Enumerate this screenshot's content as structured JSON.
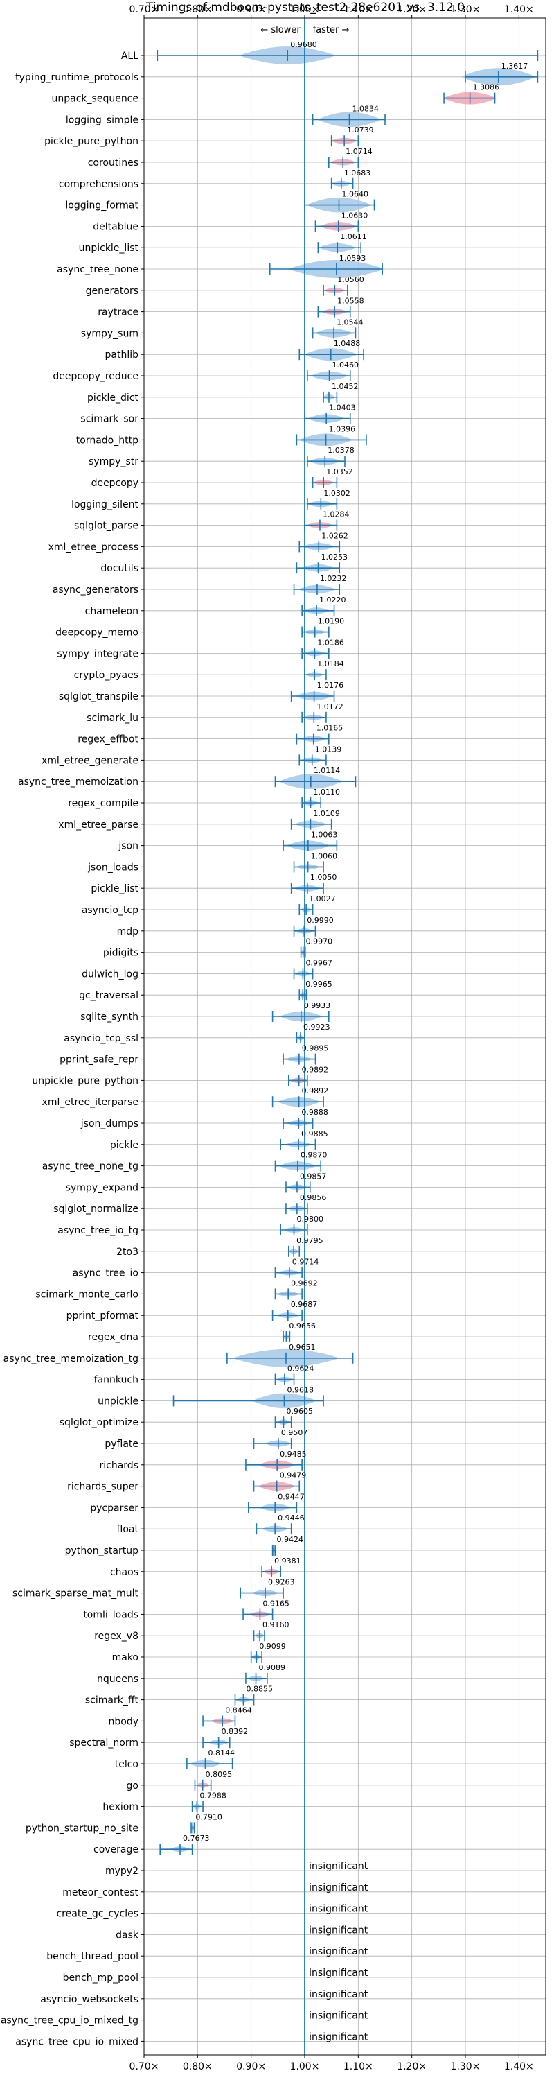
{
  "chart_data": {
    "type": "violin",
    "title": "Timings of mdboom-pystats_test2-28e6201 vs. 3.12.0",
    "annotation_slower": "← slower",
    "annotation_faster": "faster →",
    "xlim": [
      0.7,
      1.45
    ],
    "x_ticks": [
      0.7,
      0.8,
      0.9,
      1.0,
      1.1,
      1.2,
      1.3,
      1.4
    ],
    "x_tick_labels": [
      "0.70×",
      "0.80×",
      "0.90×",
      "1.00×",
      "1.10×",
      "1.20×",
      "1.30×",
      "1.40×"
    ],
    "reference_line": 1.0,
    "grid": true,
    "colors": {
      "faster": "#a6c8e8",
      "slower": "#f4a6b0",
      "line": "#1f77b4"
    },
    "insignificant_label": "insignificant",
    "benchmarks": [
      {
        "name": "ALL",
        "value": 0.968,
        "label": "0.9680",
        "lo": 0.725,
        "hi": 1.435,
        "spread": 0.09,
        "color": "faster"
      },
      {
        "name": "typing_runtime_protocols",
        "value": 1.3617,
        "label": "1.3617",
        "lo": 1.3,
        "hi": 1.435,
        "spread": 0.07,
        "color": "faster"
      },
      {
        "name": "unpack_sequence",
        "value": 1.3086,
        "label": "1.3086",
        "lo": 1.26,
        "hi": 1.355,
        "spread": 0.05,
        "color": "slower"
      },
      {
        "name": "logging_simple",
        "value": 1.0834,
        "label": "1.0834",
        "lo": 1.015,
        "hi": 1.15,
        "spread": 0.06,
        "color": "faster"
      },
      {
        "name": "pickle_pure_python",
        "value": 1.0739,
        "label": "1.0739",
        "lo": 1.05,
        "hi": 1.1,
        "spread": 0.025,
        "color": "slower"
      },
      {
        "name": "coroutines",
        "value": 1.0714,
        "label": "1.0714",
        "lo": 1.045,
        "hi": 1.1,
        "spread": 0.025,
        "color": "slower"
      },
      {
        "name": "comprehensions",
        "value": 1.0683,
        "label": "1.0683",
        "lo": 1.05,
        "hi": 1.09,
        "spread": 0.02,
        "color": "faster"
      },
      {
        "name": "logging_format",
        "value": 1.064,
        "label": "1.0640",
        "lo": 1.0,
        "hi": 1.13,
        "spread": 0.06,
        "color": "faster"
      },
      {
        "name": "deltablue",
        "value": 1.063,
        "label": "1.0630",
        "lo": 1.02,
        "hi": 1.1,
        "spread": 0.035,
        "color": "slower"
      },
      {
        "name": "unpickle_list",
        "value": 1.0611,
        "label": "1.0611",
        "lo": 1.025,
        "hi": 1.105,
        "spread": 0.035,
        "color": "faster"
      },
      {
        "name": "async_tree_none",
        "value": 1.0593,
        "label": "1.0593",
        "lo": 0.935,
        "hi": 1.145,
        "spread": 0.09,
        "color": "faster"
      },
      {
        "name": "generators",
        "value": 1.056,
        "label": "1.0560",
        "lo": 1.035,
        "hi": 1.08,
        "spread": 0.02,
        "color": "slower"
      },
      {
        "name": "raytrace",
        "value": 1.0558,
        "label": "1.0558",
        "lo": 1.025,
        "hi": 1.085,
        "spread": 0.025,
        "color": "slower"
      },
      {
        "name": "sympy_sum",
        "value": 1.0544,
        "label": "1.0544",
        "lo": 1.015,
        "hi": 1.095,
        "spread": 0.035,
        "color": "faster"
      },
      {
        "name": "pathlib",
        "value": 1.0488,
        "label": "1.0488",
        "lo": 0.99,
        "hi": 1.11,
        "spread": 0.05,
        "color": "faster"
      },
      {
        "name": "deepcopy_reduce",
        "value": 1.046,
        "label": "1.0460",
        "lo": 1.005,
        "hi": 1.085,
        "spread": 0.035,
        "color": "faster"
      },
      {
        "name": "pickle_dict",
        "value": 1.0452,
        "label": "1.0452",
        "lo": 1.035,
        "hi": 1.06,
        "spread": 0.012,
        "color": "faster"
      },
      {
        "name": "scimark_sor",
        "value": 1.0403,
        "label": "1.0403",
        "lo": 1.0,
        "hi": 1.085,
        "spread": 0.035,
        "color": "faster"
      },
      {
        "name": "tornado_http",
        "value": 1.0396,
        "label": "1.0396",
        "lo": 0.985,
        "hi": 1.115,
        "spread": 0.05,
        "color": "faster"
      },
      {
        "name": "sympy_str",
        "value": 1.0378,
        "label": "1.0378",
        "lo": 1.005,
        "hi": 1.075,
        "spread": 0.03,
        "color": "faster"
      },
      {
        "name": "deepcopy",
        "value": 1.0352,
        "label": "1.0352",
        "lo": 1.015,
        "hi": 1.06,
        "spread": 0.02,
        "color": "slower"
      },
      {
        "name": "logging_silent",
        "value": 1.0302,
        "label": "1.0302",
        "lo": 1.005,
        "hi": 1.06,
        "spread": 0.025,
        "color": "faster"
      },
      {
        "name": "sqlglot_parse",
        "value": 1.0284,
        "label": "1.0284",
        "lo": 1.0,
        "hi": 1.06,
        "spread": 0.025,
        "color": "slower"
      },
      {
        "name": "xml_etree_process",
        "value": 1.0262,
        "label": "1.0262",
        "lo": 0.99,
        "hi": 1.065,
        "spread": 0.03,
        "color": "faster"
      },
      {
        "name": "docutils",
        "value": 1.0253,
        "label": "1.0253",
        "lo": 0.985,
        "hi": 1.065,
        "spread": 0.03,
        "color": "faster"
      },
      {
        "name": "async_generators",
        "value": 1.0232,
        "label": "1.0232",
        "lo": 0.98,
        "hi": 1.065,
        "spread": 0.035,
        "color": "faster"
      },
      {
        "name": "chameleon",
        "value": 1.022,
        "label": "1.0220",
        "lo": 0.995,
        "hi": 1.055,
        "spread": 0.025,
        "color": "faster"
      },
      {
        "name": "deepcopy_memo",
        "value": 1.019,
        "label": "1.0190",
        "lo": 0.995,
        "hi": 1.045,
        "spread": 0.02,
        "color": "faster"
      },
      {
        "name": "sympy_integrate",
        "value": 1.0186,
        "label": "1.0186",
        "lo": 0.995,
        "hi": 1.045,
        "spread": 0.02,
        "color": "faster"
      },
      {
        "name": "crypto_pyaes",
        "value": 1.0184,
        "label": "1.0184",
        "lo": 1.0,
        "hi": 1.04,
        "spread": 0.017,
        "color": "faster"
      },
      {
        "name": "sqlglot_transpile",
        "value": 1.0176,
        "label": "1.0176",
        "lo": 0.975,
        "hi": 1.055,
        "spread": 0.035,
        "color": "faster"
      },
      {
        "name": "scimark_lu",
        "value": 1.0172,
        "label": "1.0172",
        "lo": 0.995,
        "hi": 1.04,
        "spread": 0.02,
        "color": "faster"
      },
      {
        "name": "regex_effbot",
        "value": 1.0165,
        "label": "1.0165",
        "lo": 0.985,
        "hi": 1.045,
        "spread": 0.025,
        "color": "faster"
      },
      {
        "name": "xml_etree_generate",
        "value": 1.0139,
        "label": "1.0139",
        "lo": 0.99,
        "hi": 1.04,
        "spread": 0.02,
        "color": "faster"
      },
      {
        "name": "async_tree_memoization",
        "value": 1.0114,
        "label": "1.0114",
        "lo": 0.945,
        "hi": 1.095,
        "spread": 0.06,
        "color": "faster"
      },
      {
        "name": "regex_compile",
        "value": 1.011,
        "label": "1.0110",
        "lo": 0.995,
        "hi": 1.03,
        "spread": 0.015,
        "color": "faster"
      },
      {
        "name": "xml_etree_parse",
        "value": 1.0109,
        "label": "1.0109",
        "lo": 0.975,
        "hi": 1.05,
        "spread": 0.03,
        "color": "faster"
      },
      {
        "name": "json",
        "value": 1.0063,
        "label": "1.0063",
        "lo": 0.96,
        "hi": 1.06,
        "spread": 0.04,
        "color": "faster"
      },
      {
        "name": "json_loads",
        "value": 1.006,
        "label": "1.0060",
        "lo": 0.98,
        "hi": 1.035,
        "spread": 0.022,
        "color": "faster"
      },
      {
        "name": "pickle_list",
        "value": 1.005,
        "label": "1.0050",
        "lo": 0.975,
        "hi": 1.035,
        "spread": 0.025,
        "color": "faster"
      },
      {
        "name": "asyncio_tcp",
        "value": 1.0027,
        "label": "1.0027",
        "lo": 0.99,
        "hi": 1.015,
        "spread": 0.01,
        "color": "faster"
      },
      {
        "name": "mdp",
        "value": 0.999,
        "label": "0.9990",
        "lo": 0.98,
        "hi": 1.02,
        "spread": 0.016,
        "color": "faster"
      },
      {
        "name": "pidigits",
        "value": 0.997,
        "label": "0.9970",
        "lo": 0.993,
        "hi": 1.001,
        "spread": 0.004,
        "color": "faster"
      },
      {
        "name": "dulwich_log",
        "value": 0.9967,
        "label": "0.9967",
        "lo": 0.98,
        "hi": 1.015,
        "spread": 0.015,
        "color": "faster"
      },
      {
        "name": "gc_traversal",
        "value": 0.9965,
        "label": "0.9965",
        "lo": 0.99,
        "hi": 1.003,
        "spread": 0.006,
        "color": "faster"
      },
      {
        "name": "sqlite_synth",
        "value": 0.9933,
        "label": "0.9933",
        "lo": 0.94,
        "hi": 1.045,
        "spread": 0.04,
        "color": "faster"
      },
      {
        "name": "asyncio_tcp_ssl",
        "value": 0.9923,
        "label": "0.9923",
        "lo": 0.985,
        "hi": 1.0,
        "spread": 0.006,
        "color": "faster"
      },
      {
        "name": "pprint_safe_repr",
        "value": 0.9895,
        "label": "0.9895",
        "lo": 0.96,
        "hi": 1.02,
        "spread": 0.025,
        "color": "faster"
      },
      {
        "name": "unpickle_pure_python",
        "value": 0.9892,
        "label": "0.9892",
        "lo": 0.97,
        "hi": 1.005,
        "spread": 0.016,
        "color": "slower"
      },
      {
        "name": "xml_etree_iterparse",
        "value": 0.9892,
        "label": "0.9892",
        "lo": 0.94,
        "hi": 1.035,
        "spread": 0.04,
        "color": "faster"
      },
      {
        "name": "json_dumps",
        "value": 0.9888,
        "label": "0.9888",
        "lo": 0.96,
        "hi": 1.015,
        "spread": 0.022,
        "color": "faster"
      },
      {
        "name": "pickle",
        "value": 0.9885,
        "label": "0.9885",
        "lo": 0.955,
        "hi": 1.02,
        "spread": 0.025,
        "color": "faster"
      },
      {
        "name": "async_tree_none_tg",
        "value": 0.987,
        "label": "0.9870",
        "lo": 0.945,
        "hi": 1.03,
        "spread": 0.035,
        "color": "faster"
      },
      {
        "name": "sympy_expand",
        "value": 0.9857,
        "label": "0.9857",
        "lo": 0.965,
        "hi": 1.01,
        "spread": 0.02,
        "color": "faster"
      },
      {
        "name": "sqlglot_normalize",
        "value": 0.9856,
        "label": "0.9856",
        "lo": 0.965,
        "hi": 1.005,
        "spread": 0.018,
        "color": "faster"
      },
      {
        "name": "async_tree_io_tg",
        "value": 0.98,
        "label": "0.9800",
        "lo": 0.955,
        "hi": 1.005,
        "spread": 0.02,
        "color": "faster"
      },
      {
        "name": "2to3",
        "value": 0.9795,
        "label": "0.9795",
        "lo": 0.97,
        "hi": 0.99,
        "spread": 0.009,
        "color": "faster"
      },
      {
        "name": "async_tree_io",
        "value": 0.9714,
        "label": "0.9714",
        "lo": 0.945,
        "hi": 0.995,
        "spread": 0.022,
        "color": "faster"
      },
      {
        "name": "scimark_monte_carlo",
        "value": 0.9692,
        "label": "0.9692",
        "lo": 0.945,
        "hi": 0.995,
        "spread": 0.02,
        "color": "faster"
      },
      {
        "name": "pprint_pformat",
        "value": 0.9687,
        "label": "0.9687",
        "lo": 0.94,
        "hi": 0.995,
        "spread": 0.022,
        "color": "faster"
      },
      {
        "name": "regex_dna",
        "value": 0.9656,
        "label": "0.9656",
        "lo": 0.96,
        "hi": 0.972,
        "spread": 0.006,
        "color": "faster"
      },
      {
        "name": "async_tree_memoization_tg",
        "value": 0.9651,
        "label": "0.9651",
        "lo": 0.855,
        "hi": 1.09,
        "spread": 0.1,
        "color": "faster"
      },
      {
        "name": "fannkuch",
        "value": 0.9624,
        "label": "0.9624",
        "lo": 0.945,
        "hi": 0.98,
        "spread": 0.016,
        "color": "faster"
      },
      {
        "name": "unpickle",
        "value": 0.9618,
        "label": "0.9618",
        "lo": 0.755,
        "hi": 1.035,
        "spread": 0.06,
        "color": "faster"
      },
      {
        "name": "sqlglot_optimize",
        "value": 0.9605,
        "label": "0.9605",
        "lo": 0.945,
        "hi": 0.975,
        "spread": 0.012,
        "color": "faster"
      },
      {
        "name": "pyflate",
        "value": 0.9507,
        "label": "0.9507",
        "lo": 0.905,
        "hi": 0.975,
        "spread": 0.025,
        "color": "faster"
      },
      {
        "name": "richards",
        "value": 0.9485,
        "label": "0.9485",
        "lo": 0.89,
        "hi": 0.995,
        "spread": 0.035,
        "color": "slower"
      },
      {
        "name": "richards_super",
        "value": 0.9479,
        "label": "0.9479",
        "lo": 0.905,
        "hi": 0.99,
        "spread": 0.035,
        "color": "slower"
      },
      {
        "name": "pycparser",
        "value": 0.9447,
        "label": "0.9447",
        "lo": 0.895,
        "hi": 0.985,
        "spread": 0.03,
        "color": "faster"
      },
      {
        "name": "float",
        "value": 0.9446,
        "label": "0.9446",
        "lo": 0.91,
        "hi": 0.975,
        "spread": 0.025,
        "color": "faster"
      },
      {
        "name": "python_startup",
        "value": 0.9424,
        "label": "0.9424",
        "lo": 0.94,
        "hi": 0.945,
        "spread": 0.003,
        "color": "faster"
      },
      {
        "name": "chaos",
        "value": 0.9381,
        "label": "0.9381",
        "lo": 0.92,
        "hi": 0.955,
        "spread": 0.016,
        "color": "slower"
      },
      {
        "name": "scimark_sparse_mat_mult",
        "value": 0.9263,
        "label": "0.9263",
        "lo": 0.88,
        "hi": 0.96,
        "spread": 0.025,
        "color": "faster"
      },
      {
        "name": "tomli_loads",
        "value": 0.9165,
        "label": "0.9165",
        "lo": 0.885,
        "hi": 0.94,
        "spread": 0.022,
        "color": "slower"
      },
      {
        "name": "regex_v8",
        "value": 0.916,
        "label": "0.9160",
        "lo": 0.905,
        "hi": 0.925,
        "spread": 0.008,
        "color": "faster"
      },
      {
        "name": "mako",
        "value": 0.9099,
        "label": "0.9099",
        "lo": 0.9,
        "hi": 0.92,
        "spread": 0.008,
        "color": "faster"
      },
      {
        "name": "nqueens",
        "value": 0.9089,
        "label": "0.9089",
        "lo": 0.89,
        "hi": 0.93,
        "spread": 0.016,
        "color": "faster"
      },
      {
        "name": "scimark_fft",
        "value": 0.8855,
        "label": "0.8855",
        "lo": 0.87,
        "hi": 0.905,
        "spread": 0.014,
        "color": "faster"
      },
      {
        "name": "nbody",
        "value": 0.8464,
        "label": "0.8464",
        "lo": 0.81,
        "hi": 0.87,
        "spread": 0.022,
        "color": "slower"
      },
      {
        "name": "spectral_norm",
        "value": 0.8392,
        "label": "0.8392",
        "lo": 0.81,
        "hi": 0.86,
        "spread": 0.02,
        "color": "faster"
      },
      {
        "name": "telco",
        "value": 0.8144,
        "label": "0.8144",
        "lo": 0.78,
        "hi": 0.865,
        "spread": 0.03,
        "color": "faster"
      },
      {
        "name": "go",
        "value": 0.8095,
        "label": "0.8095",
        "lo": 0.795,
        "hi": 0.825,
        "spread": 0.013,
        "color": "slower"
      },
      {
        "name": "hexiom",
        "value": 0.7988,
        "label": "0.7988",
        "lo": 0.79,
        "hi": 0.81,
        "spread": 0.008,
        "color": "faster"
      },
      {
        "name": "python_startup_no_site",
        "value": 0.791,
        "label": "0.7910",
        "lo": 0.788,
        "hi": 0.794,
        "spread": 0.003,
        "color": "faster"
      },
      {
        "name": "coverage",
        "value": 0.7673,
        "label": "0.7673",
        "lo": 0.73,
        "hi": 0.79,
        "spread": 0.02,
        "color": "faster"
      },
      {
        "name": "mypy2",
        "insignificant": true
      },
      {
        "name": "meteor_contest",
        "insignificant": true
      },
      {
        "name": "create_gc_cycles",
        "insignificant": true
      },
      {
        "name": "dask",
        "insignificant": true
      },
      {
        "name": "bench_thread_pool",
        "insignificant": true
      },
      {
        "name": "bench_mp_pool",
        "insignificant": true
      },
      {
        "name": "asyncio_websockets",
        "insignificant": true
      },
      {
        "name": "async_tree_cpu_io_mixed_tg",
        "insignificant": true
      },
      {
        "name": "async_tree_cpu_io_mixed",
        "insignificant": true
      }
    ]
  }
}
